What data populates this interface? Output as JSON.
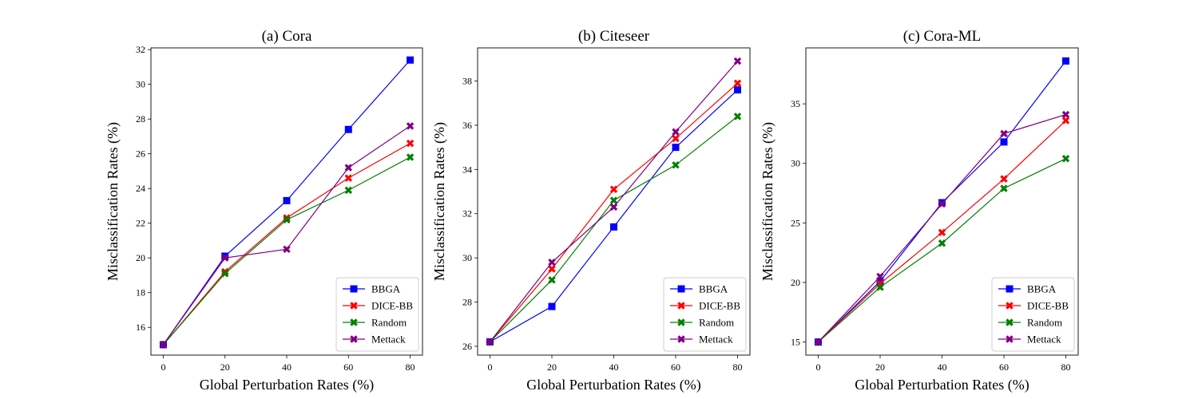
{
  "chart_data": [
    {
      "type": "line",
      "title": "(a) Cora",
      "xlabel": "Global Perturbation Rates (%)",
      "ylabel": "Misclassification Rates (%)",
      "x": [
        0,
        20,
        40,
        60,
        80
      ],
      "xticks": [
        "0",
        "20",
        "40",
        "60",
        "80"
      ],
      "xlim": [
        -4,
        84
      ],
      "ylim": [
        14.4,
        32.1
      ],
      "yticks": [
        16,
        18,
        20,
        22,
        24,
        26,
        28,
        30,
        32
      ],
      "legend_position": "lower-right",
      "series": [
        {
          "name": "BBGA",
          "color": "#0000ff",
          "marker": "square",
          "values": [
            15.0,
            20.1,
            23.3,
            27.4,
            31.4
          ]
        },
        {
          "name": "DICE-BB",
          "color": "#ff0000",
          "marker": "x",
          "values": [
            15.0,
            19.2,
            22.3,
            24.6,
            26.6
          ]
        },
        {
          "name": "Random",
          "color": "#008000",
          "marker": "x",
          "values": [
            15.0,
            19.1,
            22.2,
            23.9,
            25.8
          ]
        },
        {
          "name": "Mettack",
          "color": "#800080",
          "marker": "x",
          "values": [
            15.0,
            20.0,
            20.5,
            25.2,
            27.6
          ]
        }
      ]
    },
    {
      "type": "line",
      "title": "(b) Citeseer",
      "xlabel": "Global Perturbation Rates (%)",
      "ylabel": "Misclassification Rates (%)",
      "x": [
        0,
        20,
        40,
        60,
        80
      ],
      "xticks": [
        "0",
        "20",
        "40",
        "60",
        "80"
      ],
      "xlim": [
        -4,
        84
      ],
      "ylim": [
        25.6,
        39.5
      ],
      "yticks": [
        26,
        28,
        30,
        32,
        34,
        36,
        38
      ],
      "legend_position": "lower-right",
      "series": [
        {
          "name": "BBGA",
          "color": "#0000ff",
          "marker": "square",
          "values": [
            26.2,
            27.8,
            31.4,
            35.0,
            37.6
          ]
        },
        {
          "name": "DICE-BB",
          "color": "#ff0000",
          "marker": "x",
          "values": [
            26.2,
            29.5,
            33.1,
            35.4,
            37.9
          ]
        },
        {
          "name": "Random",
          "color": "#008000",
          "marker": "x",
          "values": [
            26.2,
            29.0,
            32.6,
            34.2,
            36.4
          ]
        },
        {
          "name": "Mettack",
          "color": "#800080",
          "marker": "x",
          "values": [
            26.2,
            29.8,
            32.3,
            35.7,
            38.9
          ]
        }
      ]
    },
    {
      "type": "line",
      "title": "(c) Cora-ML",
      "xlabel": "Global Perturbation Rates (%)",
      "ylabel": "Misclassification Rates (%)",
      "x": [
        0,
        20,
        40,
        60,
        80
      ],
      "xticks": [
        "0",
        "20",
        "40",
        "60",
        "80"
      ],
      "xlim": [
        -4,
        84
      ],
      "ylim": [
        13.9,
        39.7
      ],
      "yticks": [
        15,
        20,
        25,
        30,
        35
      ],
      "legend_position": "lower-right",
      "series": [
        {
          "name": "BBGA",
          "color": "#0000ff",
          "marker": "square",
          "values": [
            15.0,
            20.1,
            26.7,
            31.8,
            38.6
          ]
        },
        {
          "name": "DICE-BB",
          "color": "#ff0000",
          "marker": "x",
          "values": [
            15.0,
            19.9,
            24.2,
            28.7,
            33.6
          ]
        },
        {
          "name": "Random",
          "color": "#008000",
          "marker": "x",
          "values": [
            15.0,
            19.6,
            23.3,
            27.9,
            30.4
          ]
        },
        {
          "name": "Mettack",
          "color": "#800080",
          "marker": "x",
          "values": [
            15.0,
            20.5,
            26.6,
            32.5,
            34.1
          ]
        }
      ]
    }
  ]
}
